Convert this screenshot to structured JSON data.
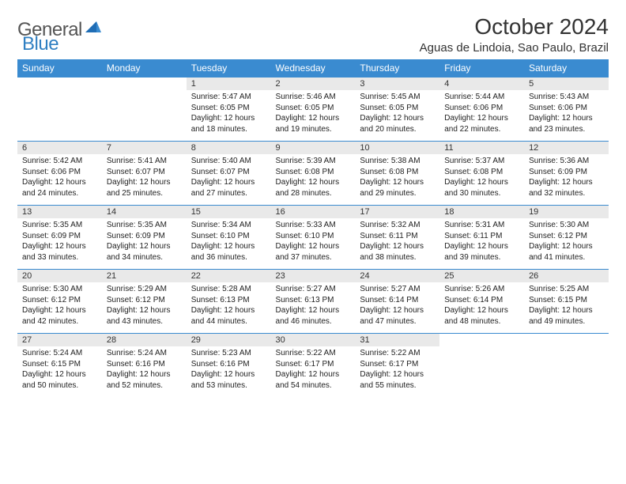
{
  "brand": {
    "part1": "General",
    "part2": "Blue"
  },
  "title": "October 2024",
  "location": "Aguas de Lindoia, Sao Paulo, Brazil",
  "colors": {
    "header_bg": "#3a8bd0",
    "header_fg": "#ffffff",
    "daynum_bg": "#e9e9e9",
    "rule": "#3a8bd0",
    "brand_gray": "#555555",
    "brand_blue": "#2f7fc2"
  },
  "weekdays": [
    "Sunday",
    "Monday",
    "Tuesday",
    "Wednesday",
    "Thursday",
    "Friday",
    "Saturday"
  ],
  "weeks": [
    [
      null,
      null,
      {
        "n": "1",
        "sr": "Sunrise: 5:47 AM",
        "ss": "Sunset: 6:05 PM",
        "d1": "Daylight: 12 hours",
        "d2": "and 18 minutes."
      },
      {
        "n": "2",
        "sr": "Sunrise: 5:46 AM",
        "ss": "Sunset: 6:05 PM",
        "d1": "Daylight: 12 hours",
        "d2": "and 19 minutes."
      },
      {
        "n": "3",
        "sr": "Sunrise: 5:45 AM",
        "ss": "Sunset: 6:05 PM",
        "d1": "Daylight: 12 hours",
        "d2": "and 20 minutes."
      },
      {
        "n": "4",
        "sr": "Sunrise: 5:44 AM",
        "ss": "Sunset: 6:06 PM",
        "d1": "Daylight: 12 hours",
        "d2": "and 22 minutes."
      },
      {
        "n": "5",
        "sr": "Sunrise: 5:43 AM",
        "ss": "Sunset: 6:06 PM",
        "d1": "Daylight: 12 hours",
        "d2": "and 23 minutes."
      }
    ],
    [
      {
        "n": "6",
        "sr": "Sunrise: 5:42 AM",
        "ss": "Sunset: 6:06 PM",
        "d1": "Daylight: 12 hours",
        "d2": "and 24 minutes."
      },
      {
        "n": "7",
        "sr": "Sunrise: 5:41 AM",
        "ss": "Sunset: 6:07 PM",
        "d1": "Daylight: 12 hours",
        "d2": "and 25 minutes."
      },
      {
        "n": "8",
        "sr": "Sunrise: 5:40 AM",
        "ss": "Sunset: 6:07 PM",
        "d1": "Daylight: 12 hours",
        "d2": "and 27 minutes."
      },
      {
        "n": "9",
        "sr": "Sunrise: 5:39 AM",
        "ss": "Sunset: 6:08 PM",
        "d1": "Daylight: 12 hours",
        "d2": "and 28 minutes."
      },
      {
        "n": "10",
        "sr": "Sunrise: 5:38 AM",
        "ss": "Sunset: 6:08 PM",
        "d1": "Daylight: 12 hours",
        "d2": "and 29 minutes."
      },
      {
        "n": "11",
        "sr": "Sunrise: 5:37 AM",
        "ss": "Sunset: 6:08 PM",
        "d1": "Daylight: 12 hours",
        "d2": "and 30 minutes."
      },
      {
        "n": "12",
        "sr": "Sunrise: 5:36 AM",
        "ss": "Sunset: 6:09 PM",
        "d1": "Daylight: 12 hours",
        "d2": "and 32 minutes."
      }
    ],
    [
      {
        "n": "13",
        "sr": "Sunrise: 5:35 AM",
        "ss": "Sunset: 6:09 PM",
        "d1": "Daylight: 12 hours",
        "d2": "and 33 minutes."
      },
      {
        "n": "14",
        "sr": "Sunrise: 5:35 AM",
        "ss": "Sunset: 6:09 PM",
        "d1": "Daylight: 12 hours",
        "d2": "and 34 minutes."
      },
      {
        "n": "15",
        "sr": "Sunrise: 5:34 AM",
        "ss": "Sunset: 6:10 PM",
        "d1": "Daylight: 12 hours",
        "d2": "and 36 minutes."
      },
      {
        "n": "16",
        "sr": "Sunrise: 5:33 AM",
        "ss": "Sunset: 6:10 PM",
        "d1": "Daylight: 12 hours",
        "d2": "and 37 minutes."
      },
      {
        "n": "17",
        "sr": "Sunrise: 5:32 AM",
        "ss": "Sunset: 6:11 PM",
        "d1": "Daylight: 12 hours",
        "d2": "and 38 minutes."
      },
      {
        "n": "18",
        "sr": "Sunrise: 5:31 AM",
        "ss": "Sunset: 6:11 PM",
        "d1": "Daylight: 12 hours",
        "d2": "and 39 minutes."
      },
      {
        "n": "19",
        "sr": "Sunrise: 5:30 AM",
        "ss": "Sunset: 6:12 PM",
        "d1": "Daylight: 12 hours",
        "d2": "and 41 minutes."
      }
    ],
    [
      {
        "n": "20",
        "sr": "Sunrise: 5:30 AM",
        "ss": "Sunset: 6:12 PM",
        "d1": "Daylight: 12 hours",
        "d2": "and 42 minutes."
      },
      {
        "n": "21",
        "sr": "Sunrise: 5:29 AM",
        "ss": "Sunset: 6:12 PM",
        "d1": "Daylight: 12 hours",
        "d2": "and 43 minutes."
      },
      {
        "n": "22",
        "sr": "Sunrise: 5:28 AM",
        "ss": "Sunset: 6:13 PM",
        "d1": "Daylight: 12 hours",
        "d2": "and 44 minutes."
      },
      {
        "n": "23",
        "sr": "Sunrise: 5:27 AM",
        "ss": "Sunset: 6:13 PM",
        "d1": "Daylight: 12 hours",
        "d2": "and 46 minutes."
      },
      {
        "n": "24",
        "sr": "Sunrise: 5:27 AM",
        "ss": "Sunset: 6:14 PM",
        "d1": "Daylight: 12 hours",
        "d2": "and 47 minutes."
      },
      {
        "n": "25",
        "sr": "Sunrise: 5:26 AM",
        "ss": "Sunset: 6:14 PM",
        "d1": "Daylight: 12 hours",
        "d2": "and 48 minutes."
      },
      {
        "n": "26",
        "sr": "Sunrise: 5:25 AM",
        "ss": "Sunset: 6:15 PM",
        "d1": "Daylight: 12 hours",
        "d2": "and 49 minutes."
      }
    ],
    [
      {
        "n": "27",
        "sr": "Sunrise: 5:24 AM",
        "ss": "Sunset: 6:15 PM",
        "d1": "Daylight: 12 hours",
        "d2": "and 50 minutes."
      },
      {
        "n": "28",
        "sr": "Sunrise: 5:24 AM",
        "ss": "Sunset: 6:16 PM",
        "d1": "Daylight: 12 hours",
        "d2": "and 52 minutes."
      },
      {
        "n": "29",
        "sr": "Sunrise: 5:23 AM",
        "ss": "Sunset: 6:16 PM",
        "d1": "Daylight: 12 hours",
        "d2": "and 53 minutes."
      },
      {
        "n": "30",
        "sr": "Sunrise: 5:22 AM",
        "ss": "Sunset: 6:17 PM",
        "d1": "Daylight: 12 hours",
        "d2": "and 54 minutes."
      },
      {
        "n": "31",
        "sr": "Sunrise: 5:22 AM",
        "ss": "Sunset: 6:17 PM",
        "d1": "Daylight: 12 hours",
        "d2": "and 55 minutes."
      },
      null,
      null
    ]
  ]
}
